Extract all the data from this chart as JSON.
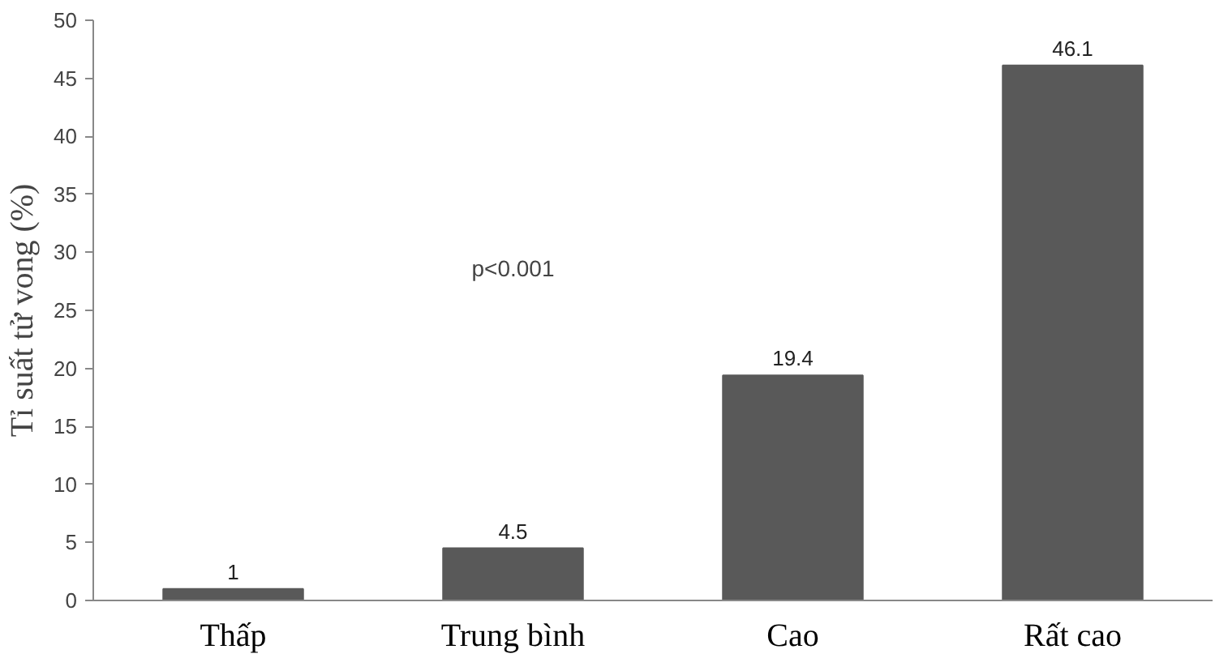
{
  "chart_data": {
    "type": "bar",
    "ylabel": "Tỉ suất tử vong (%)",
    "categories": [
      "Thấp",
      "Trung bình",
      "Cao",
      "Rất cao"
    ],
    "values": [
      1,
      4.5,
      19.4,
      46.1
    ],
    "color": "#595959",
    "ylim": [
      0,
      50
    ],
    "yticks": [
      0,
      5,
      10,
      15,
      20,
      25,
      30,
      35,
      40,
      45,
      50
    ],
    "data_labels": true,
    "grid": false,
    "annotations": [
      "p<0.001"
    ]
  }
}
